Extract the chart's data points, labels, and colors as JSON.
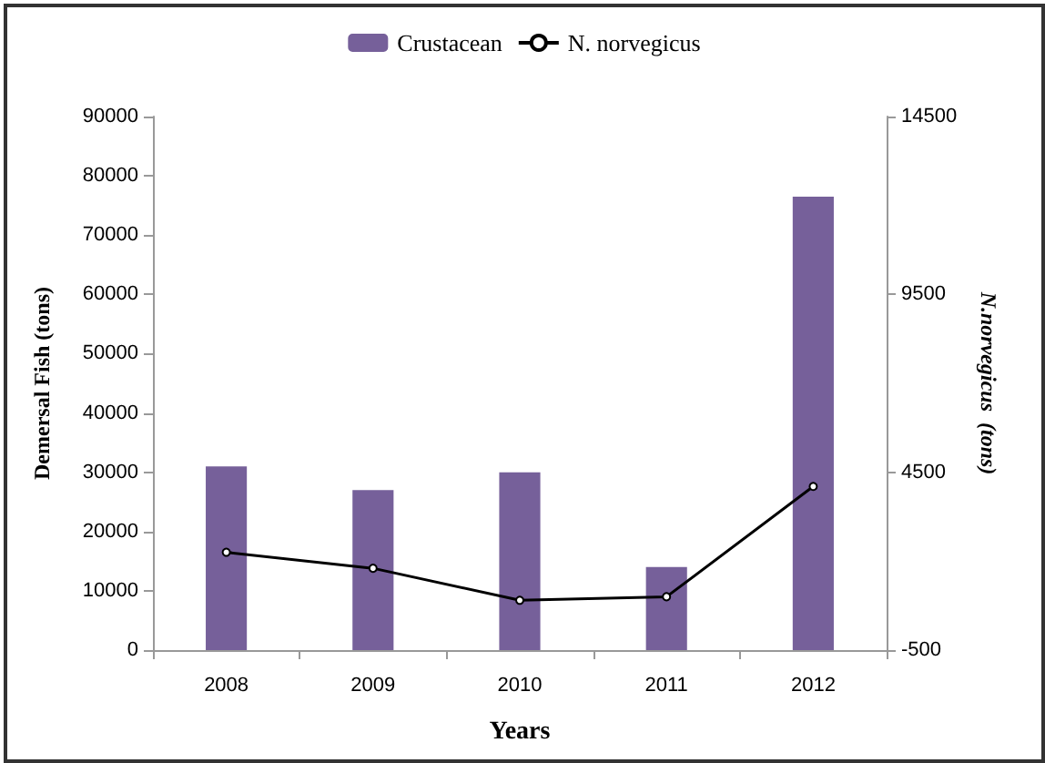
{
  "chart_data": {
    "type": "bar",
    "xlabel": "Years",
    "ylabel": "Demersal Fish (tons)",
    "y2label": "N.norvegicus  (tons)",
    "categories": [
      "2008",
      "2009",
      "2010",
      "2011",
      "2012"
    ],
    "series": [
      {
        "name": "Crustacean",
        "color": "#76609a",
        "values": [
          31000,
          27000,
          30000,
          14000,
          76500
        ]
      },
      {
        "name": "N. norvegicus",
        "type": "line",
        "axis": "y2",
        "color": "#000000",
        "marker": "circle",
        "values": [
          2250,
          1800,
          900,
          1000,
          4100
        ]
      }
    ],
    "ylim": [
      0,
      90000
    ],
    "yticks": [
      0,
      10000,
      20000,
      30000,
      40000,
      50000,
      60000,
      70000,
      80000,
      90000
    ],
    "y2lim": [
      -500,
      14500
    ],
    "y2ticks": [
      -500,
      4500,
      9500,
      14500
    ],
    "grid": false,
    "legend": "top"
  }
}
